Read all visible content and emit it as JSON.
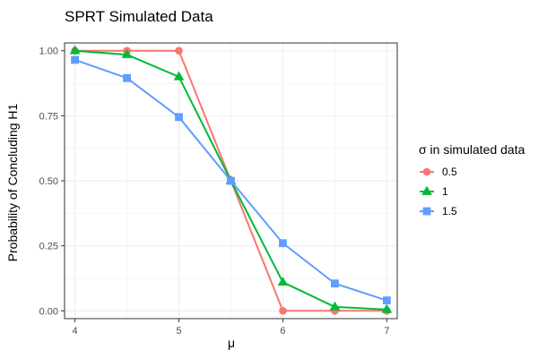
{
  "chart_data": {
    "type": "line",
    "title": "SPRT Simulated Data",
    "xlabel": "μ",
    "ylabel": "Probability of Concluding H1",
    "xlim": [
      3.9,
      7.1
    ],
    "ylim": [
      -0.03,
      1.03
    ],
    "x_ticks": [
      4,
      5,
      6,
      7
    ],
    "x_tick_labels": [
      "4",
      "5",
      "6",
      "7"
    ],
    "y_ticks": [
      0,
      0.25,
      0.5,
      0.75,
      1
    ],
    "y_tick_labels": [
      "0.00",
      "0.25",
      "0.50",
      "0.75",
      "1.00"
    ],
    "grid": true,
    "legend": {
      "title": "σ  in simulated data",
      "placement": "right"
    },
    "x": [
      4,
      4.5,
      5,
      5.5,
      6,
      6.5,
      7
    ],
    "series": [
      {
        "name": "0.5",
        "color": "#F8766D",
        "marker": "circle",
        "values": [
          1.0,
          1.0,
          1.0,
          0.5,
          0.0,
          0.0,
          0.0
        ]
      },
      {
        "name": "1",
        "color": "#00BA38",
        "marker": "triangle",
        "values": [
          1.0,
          0.985,
          0.9,
          0.5,
          0.11,
          0.015,
          0.005
        ]
      },
      {
        "name": "1.5",
        "color": "#619CFF",
        "marker": "square",
        "values": [
          0.965,
          0.895,
          0.745,
          0.5,
          0.26,
          0.105,
          0.04
        ]
      }
    ]
  }
}
